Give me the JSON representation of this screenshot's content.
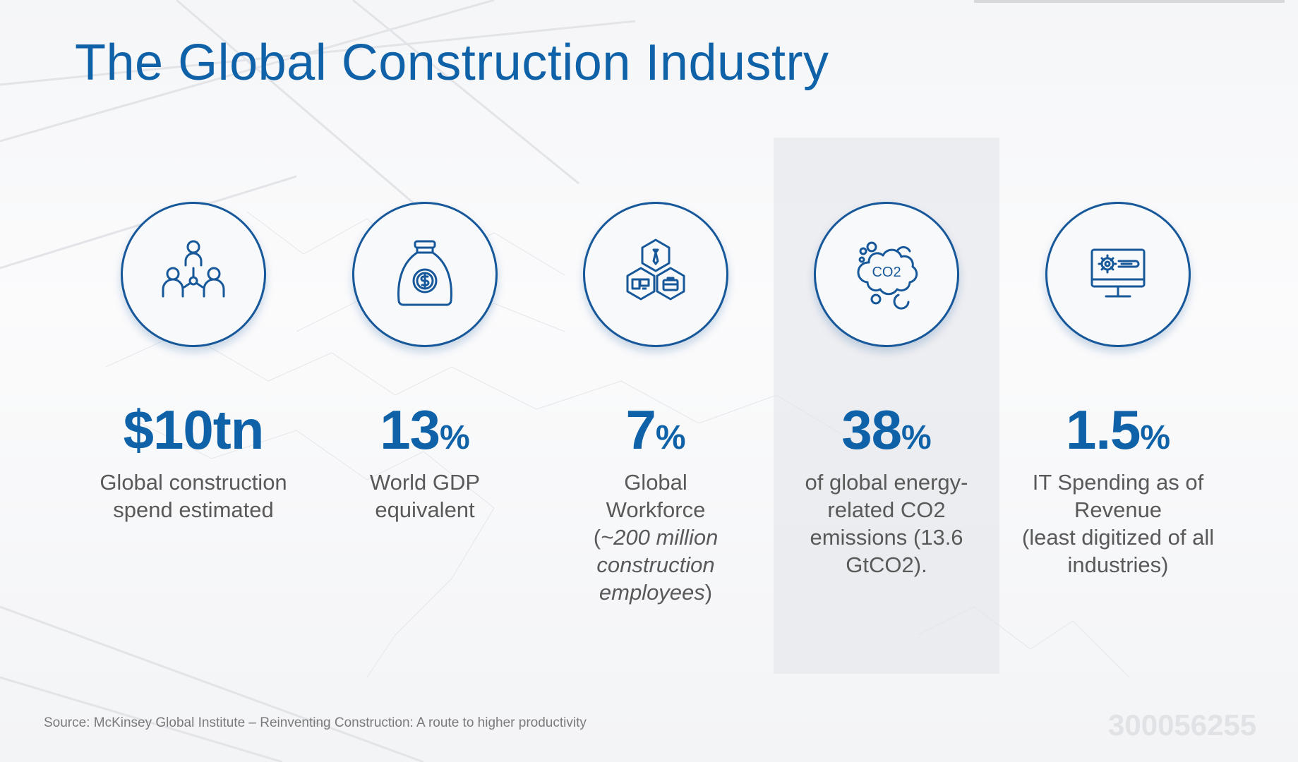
{
  "slide": {
    "title": "The Global Construction Industry",
    "source": "Source: McKinsey Global Institute – Reinventing Construction: A route to higher productivity",
    "watermark": "300056255",
    "accent_color": "#0f62a8"
  },
  "stats": [
    {
      "icon": "team-network-icon",
      "value": "$10tn",
      "unit": "",
      "desc_lines": [
        "Global construction",
        "spend estimated"
      ]
    },
    {
      "icon": "money-bag-icon",
      "value": "13",
      "unit": "%",
      "desc_lines": [
        "World GDP",
        "equivalent"
      ]
    },
    {
      "icon": "workforce-hexagon-icon",
      "value": "7",
      "unit": "%",
      "desc_lines": [
        "Global",
        "Workforce"
      ],
      "desc_italic": {
        "open": "(",
        "line1": "~200 million",
        "line2": "construction",
        "line3": "employees",
        "close": ")"
      }
    },
    {
      "icon": "co2-cloud-icon",
      "value": "38",
      "unit": "%",
      "desc_lines": [
        "of global energy-",
        "related CO2",
        "emissions (13.6",
        "GtCO2)."
      ]
    },
    {
      "icon": "monitor-settings-icon",
      "value": "1.5",
      "unit": "%",
      "desc_lines": [
        "IT Spending as of",
        "Revenue",
        "(least digitized of all",
        "industries)"
      ]
    }
  ]
}
